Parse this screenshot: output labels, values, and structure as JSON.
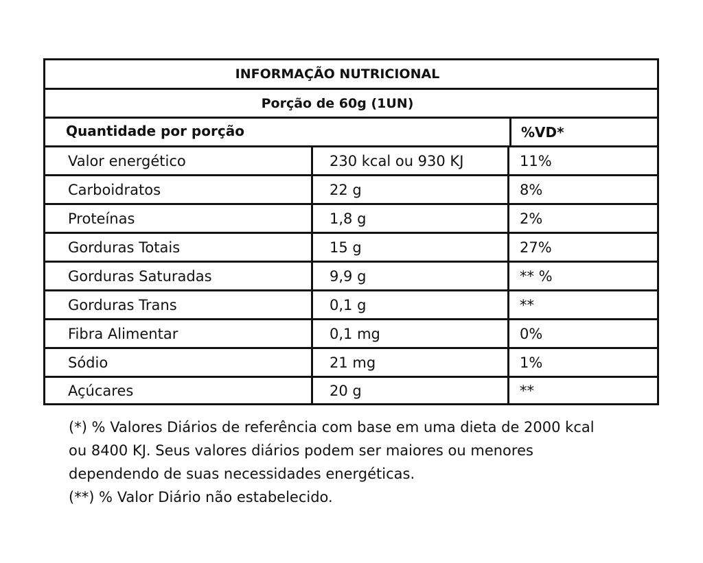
{
  "label": {
    "title": "INFORMAÇÃO NUTRICIONAL",
    "portion": "Porção de 60g  (1UN)",
    "header": {
      "quantity": "Quantidade por porção",
      "vd": "%VD*"
    },
    "rows": [
      {
        "name": "Valor energético",
        "amount": "230 kcal ou 930 KJ",
        "vd": "11%"
      },
      {
        "name": "Carboidratos",
        "amount": "22 g",
        "vd": "8%"
      },
      {
        "name": "Proteínas",
        "amount": "1,8 g",
        "vd": "2%"
      },
      {
        "name": "Gorduras Totais",
        "amount": "15 g",
        "vd": "27%"
      },
      {
        "name": "Gorduras Saturadas",
        "amount": "9,9 g",
        "vd": "** %"
      },
      {
        "name": "Gorduras Trans",
        "amount": "0,1 g",
        "vd": "**"
      },
      {
        "name": "Fibra Alimentar",
        "amount": "0,1 mg",
        "vd": "0%"
      },
      {
        "name": "Sódio",
        "amount": "21 mg",
        "vd": "1%"
      },
      {
        "name": "Açúcares",
        "amount": "20 g",
        "vd": "**"
      }
    ]
  },
  "footnotes": {
    "line1": "(*) % Valores Diários de referência com base em uma dieta de 2000 kcal",
    "line2": "ou 8400 KJ. Seus valores diários podem ser maiores ou menores",
    "line3": "dependendo de suas necessidades energéticas.",
    "line4": "(**) % Valor Diário não estabelecido."
  }
}
